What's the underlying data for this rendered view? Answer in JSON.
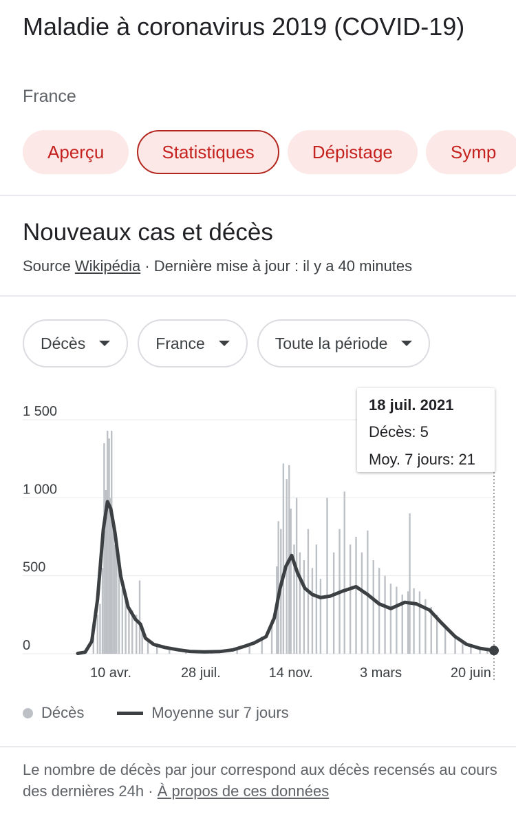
{
  "header": {
    "title": "Maladie à coronavirus 2019 (COVID-19)",
    "subtitle": "France"
  },
  "tabs": [
    {
      "label": "Aperçu",
      "active": false
    },
    {
      "label": "Statistiques",
      "active": true
    },
    {
      "label": "Dépistage",
      "active": false
    },
    {
      "label": "Symp",
      "active": false
    }
  ],
  "section": {
    "title": "Nouveaux cas et décès",
    "source_prefix": "Source",
    "source_link": "Wikipédia",
    "updated": "· Dernière mise à jour : il y a 40 minutes"
  },
  "filters": {
    "metric": "Décès",
    "region": "France",
    "period": "Toute la période"
  },
  "tooltip": {
    "date": "18 juil. 2021",
    "deaths_label": "Décès:",
    "deaths_value": "5",
    "avg_label": "Moy. 7 jours:",
    "avg_value": "21"
  },
  "legend": {
    "bars_label": "Décès",
    "line_label": "Moyenne sur 7 jours"
  },
  "footer": {
    "text": "Le nombre de décès par jour correspond aux décès recensés au cours des dernières 24h",
    "separator": "·",
    "link": "À propos de ces données"
  },
  "colors": {
    "accent": "#c5221f",
    "tab_bg": "#fce8e6",
    "bars": "#bdc1c6",
    "line": "#3c4043"
  },
  "chart_data": {
    "type": "bar",
    "x_start": "2020-03-01",
    "x_end": "2021-07-18",
    "x_ticks": [
      {
        "date": "2020-04-10",
        "label": "10 avr."
      },
      {
        "date": "2020-07-28",
        "label": "28 juil."
      },
      {
        "date": "2020-11-14",
        "label": "14 nov."
      },
      {
        "date": "2021-03-03",
        "label": "3 mars"
      },
      {
        "date": "2021-06-20",
        "label": "20 juin"
      }
    ],
    "y_ticks": [
      {
        "value": 0,
        "label": "0"
      },
      {
        "value": 500,
        "label": "500"
      },
      {
        "value": 1000,
        "label": "1 000"
      },
      {
        "value": 1500,
        "label": "1 500"
      }
    ],
    "ylim": [
      0,
      1500
    ],
    "series": [
      {
        "name": "Moyenne sur 7 jours",
        "kind": "line",
        "points": [
          {
            "x": "2020-03-01",
            "y": 2
          },
          {
            "x": "2020-03-10",
            "y": 10
          },
          {
            "x": "2020-03-18",
            "y": 80
          },
          {
            "x": "2020-03-25",
            "y": 350
          },
          {
            "x": "2020-04-01",
            "y": 800
          },
          {
            "x": "2020-04-06",
            "y": 975
          },
          {
            "x": "2020-04-10",
            "y": 930
          },
          {
            "x": "2020-04-15",
            "y": 780
          },
          {
            "x": "2020-04-22",
            "y": 500
          },
          {
            "x": "2020-05-01",
            "y": 300
          },
          {
            "x": "2020-05-10",
            "y": 220
          },
          {
            "x": "2020-05-16",
            "y": 190
          },
          {
            "x": "2020-05-22",
            "y": 100
          },
          {
            "x": "2020-06-01",
            "y": 60
          },
          {
            "x": "2020-06-15",
            "y": 40
          },
          {
            "x": "2020-07-01",
            "y": 25
          },
          {
            "x": "2020-07-15",
            "y": 15
          },
          {
            "x": "2020-08-01",
            "y": 12
          },
          {
            "x": "2020-08-20",
            "y": 14
          },
          {
            "x": "2020-09-05",
            "y": 25
          },
          {
            "x": "2020-09-20",
            "y": 50
          },
          {
            "x": "2020-10-01",
            "y": 70
          },
          {
            "x": "2020-10-15",
            "y": 110
          },
          {
            "x": "2020-10-25",
            "y": 230
          },
          {
            "x": "2020-11-01",
            "y": 420
          },
          {
            "x": "2020-11-08",
            "y": 560
          },
          {
            "x": "2020-11-15",
            "y": 630
          },
          {
            "x": "2020-11-22",
            "y": 520
          },
          {
            "x": "2020-12-01",
            "y": 420
          },
          {
            "x": "2020-12-10",
            "y": 380
          },
          {
            "x": "2020-12-20",
            "y": 360
          },
          {
            "x": "2021-01-01",
            "y": 370
          },
          {
            "x": "2021-01-15",
            "y": 400
          },
          {
            "x": "2021-02-01",
            "y": 430
          },
          {
            "x": "2021-02-15",
            "y": 380
          },
          {
            "x": "2021-03-01",
            "y": 320
          },
          {
            "x": "2021-03-15",
            "y": 290
          },
          {
            "x": "2021-04-01",
            "y": 330
          },
          {
            "x": "2021-04-15",
            "y": 320
          },
          {
            "x": "2021-05-01",
            "y": 280
          },
          {
            "x": "2021-05-15",
            "y": 200
          },
          {
            "x": "2021-06-01",
            "y": 110
          },
          {
            "x": "2021-06-15",
            "y": 60
          },
          {
            "x": "2021-07-01",
            "y": 35
          },
          {
            "x": "2021-07-18",
            "y": 21
          }
        ]
      },
      {
        "name": "Décès",
        "kind": "bars",
        "points": [
          {
            "x": "2020-03-20",
            "y": 110
          },
          {
            "x": "2020-03-25",
            "y": 250
          },
          {
            "x": "2020-03-28",
            "y": 320
          },
          {
            "x": "2020-03-31",
            "y": 550
          },
          {
            "x": "2020-04-02",
            "y": 1350
          },
          {
            "x": "2020-04-04",
            "y": 1050
          },
          {
            "x": "2020-04-06",
            "y": 1430
          },
          {
            "x": "2020-04-08",
            "y": 1380
          },
          {
            "x": "2020-04-09",
            "y": 1000
          },
          {
            "x": "2020-04-11",
            "y": 1430
          },
          {
            "x": "2020-04-13",
            "y": 800
          },
          {
            "x": "2020-04-15",
            "y": 700
          },
          {
            "x": "2020-04-17",
            "y": 750
          },
          {
            "x": "2020-04-20",
            "y": 550
          },
          {
            "x": "2020-04-24",
            "y": 420
          },
          {
            "x": "2020-04-28",
            "y": 380
          },
          {
            "x": "2020-05-02",
            "y": 300
          },
          {
            "x": "2020-05-06",
            "y": 280
          },
          {
            "x": "2020-05-11",
            "y": 250
          },
          {
            "x": "2020-05-15",
            "y": 470
          },
          {
            "x": "2020-05-18",
            "y": 150
          },
          {
            "x": "2020-05-25",
            "y": 100
          },
          {
            "x": "2020-06-05",
            "y": 60
          },
          {
            "x": "2020-06-20",
            "y": 40
          },
          {
            "x": "2020-07-10",
            "y": 25
          },
          {
            "x": "2020-08-10",
            "y": 15
          },
          {
            "x": "2020-09-10",
            "y": 35
          },
          {
            "x": "2020-09-25",
            "y": 70
          },
          {
            "x": "2020-10-10",
            "y": 110
          },
          {
            "x": "2020-10-22",
            "y": 220
          },
          {
            "x": "2020-10-28",
            "y": 560
          },
          {
            "x": "2020-10-30",
            "y": 850
          },
          {
            "x": "2020-11-02",
            "y": 800
          },
          {
            "x": "2020-11-05",
            "y": 1220
          },
          {
            "x": "2020-11-09",
            "y": 1120
          },
          {
            "x": "2020-11-12",
            "y": 1210
          },
          {
            "x": "2020-11-14",
            "y": 930
          },
          {
            "x": "2020-11-18",
            "y": 700
          },
          {
            "x": "2020-11-21",
            "y": 1000
          },
          {
            "x": "2020-11-25",
            "y": 650
          },
          {
            "x": "2020-11-30",
            "y": 600
          },
          {
            "x": "2020-12-05",
            "y": 800
          },
          {
            "x": "2020-12-10",
            "y": 550
          },
          {
            "x": "2020-12-15",
            "y": 700
          },
          {
            "x": "2020-12-20",
            "y": 480
          },
          {
            "x": "2020-12-28",
            "y": 1000
          },
          {
            "x": "2021-01-05",
            "y": 650
          },
          {
            "x": "2021-01-12",
            "y": 800
          },
          {
            "x": "2021-01-18",
            "y": 1040
          },
          {
            "x": "2021-01-25",
            "y": 700
          },
          {
            "x": "2021-02-01",
            "y": 750
          },
          {
            "x": "2021-02-08",
            "y": 650
          },
          {
            "x": "2021-02-15",
            "y": 790
          },
          {
            "x": "2021-02-22",
            "y": 600
          },
          {
            "x": "2021-03-01",
            "y": 550
          },
          {
            "x": "2021-03-08",
            "y": 500
          },
          {
            "x": "2021-03-15",
            "y": 450
          },
          {
            "x": "2021-03-22",
            "y": 430
          },
          {
            "x": "2021-03-29",
            "y": 380
          },
          {
            "x": "2021-04-05",
            "y": 400
          },
          {
            "x": "2021-04-07",
            "y": 900
          },
          {
            "x": "2021-04-12",
            "y": 420
          },
          {
            "x": "2021-04-19",
            "y": 400
          },
          {
            "x": "2021-04-26",
            "y": 350
          },
          {
            "x": "2021-05-03",
            "y": 300
          },
          {
            "x": "2021-05-10",
            "y": 250
          },
          {
            "x": "2021-05-20",
            "y": 170
          },
          {
            "x": "2021-06-01",
            "y": 120
          },
          {
            "x": "2021-06-10",
            "y": 80
          },
          {
            "x": "2021-06-20",
            "y": 50
          },
          {
            "x": "2021-07-01",
            "y": 30
          },
          {
            "x": "2021-07-10",
            "y": 20
          },
          {
            "x": "2021-07-18",
            "y": 5
          }
        ]
      }
    ],
    "grid": true,
    "legend_position": "bottom-left"
  }
}
